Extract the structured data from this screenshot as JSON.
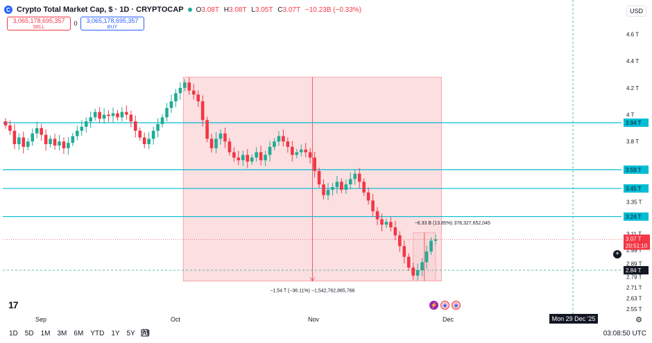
{
  "header": {
    "symbol": "Crypto Total Market Cap, $ · 1D · CRYPTOCAP",
    "open_label": "O",
    "open": "3.08T",
    "high_label": "H",
    "high": "3.08T",
    "low_label": "L",
    "low": "3.05T",
    "close_label": "C",
    "close": "3.07T",
    "change": "−10.23B (−0.33%)"
  },
  "trade": {
    "sell_value": "3,065,178,695,357",
    "sell_label": "SELL",
    "spread": "0",
    "buy_value": "3,065,178,695,357",
    "buy_label": "BUY"
  },
  "currency": "USD",
  "price_axis": [
    {
      "label": "4.6 T",
      "v": 4.6
    },
    {
      "label": "4.4 T",
      "v": 4.4
    },
    {
      "label": "4.2 T",
      "v": 4.2
    },
    {
      "label": "4 T",
      "v": 4.0
    },
    {
      "label": "3.8 T",
      "v": 3.8
    },
    {
      "label": "3.35 T",
      "v": 3.35
    },
    {
      "label": "3.11 T",
      "v": 3.11
    },
    {
      "label": "2.99 T",
      "v": 2.99
    },
    {
      "label": "2.89 T",
      "v": 2.89
    },
    {
      "label": "2.79 T",
      "v": 2.79
    },
    {
      "label": "2.71 T",
      "v": 2.71
    },
    {
      "label": "2.63 T",
      "v": 2.63
    },
    {
      "label": "2.55 T",
      "v": 2.55
    }
  ],
  "hlines": [
    {
      "label": "3.94 T",
      "v": 3.94
    },
    {
      "label": "3.59 T",
      "v": 3.59
    },
    {
      "label": "3.45 T",
      "v": 3.45
    },
    {
      "label": "3.24 T",
      "v": 3.24
    }
  ],
  "last_price": {
    "label": "3.07 T",
    "v": 3.07,
    "countdown": "20:51:10"
  },
  "crosshair_price": {
    "label": "2.84 T",
    "v": 2.84
  },
  "crosshair_date": "Mon 29 Dec '25",
  "time_axis": [
    {
      "label": "Sep",
      "x": 59
    },
    {
      "label": "Oct",
      "x": 253
    },
    {
      "label": "Nov",
      "x": 452
    },
    {
      "label": "Dec",
      "x": 646
    }
  ],
  "measure_main": {
    "label": "−1.54 T (−36.11%) −1,542,762,865,766"
  },
  "measure_small": {
    "label": "−6.33 B (13.85%) 378,327,652,045"
  },
  "ranges": [
    "1D",
    "5D",
    "1M",
    "3M",
    "6M",
    "YTD",
    "1Y",
    "5Y",
    "All"
  ],
  "utc": "03:08:50 UTC",
  "colors": {
    "up": "#22ab94",
    "down": "#f23645",
    "line": "#00bcd4",
    "range": "#f7c5c8"
  },
  "icons": {
    "logo": "crypto-cap-icon",
    "calendar": "calendar-icon",
    "gear": "gear-icon",
    "plus": "add-alert-icon"
  },
  "chart_data": {
    "type": "candlestick",
    "ylim": [
      2.53,
      4.7
    ],
    "y_unit": "T",
    "series": [
      {
        "name": "",
        "values": [
          3.92,
          3.88,
          3.78,
          3.83,
          3.76,
          3.8,
          3.86,
          3.9,
          3.85,
          3.78,
          3.82,
          3.77,
          3.8,
          3.75,
          3.79,
          3.84,
          3.88,
          3.91,
          3.95,
          3.98,
          4.02,
          3.97,
          4.0,
          3.99,
          4.01,
          3.98,
          4.02,
          4.0,
          3.95,
          3.88,
          3.83,
          3.78,
          3.82,
          3.88,
          3.93,
          3.98,
          4.05,
          4.1,
          4.16,
          4.2,
          4.24,
          4.18,
          4.15,
          4.1,
          3.96,
          3.82,
          3.75,
          3.82,
          3.86,
          3.8,
          3.72,
          3.68,
          3.66,
          3.7,
          3.65,
          3.68,
          3.72,
          3.66,
          3.7,
          3.76,
          3.8,
          3.84,
          3.8,
          3.76,
          3.7,
          3.72,
          3.74,
          3.72,
          3.68,
          3.58,
          3.48,
          3.4,
          3.44,
          3.46,
          3.5,
          3.44,
          3.48,
          3.52,
          3.56,
          3.5,
          3.42,
          3.36,
          3.28,
          3.22,
          3.18,
          3.2,
          3.16,
          3.1,
          3.02,
          2.94,
          2.86,
          2.8,
          2.84,
          2.9,
          2.98,
          3.06,
          3.07
        ]
      }
    ]
  }
}
